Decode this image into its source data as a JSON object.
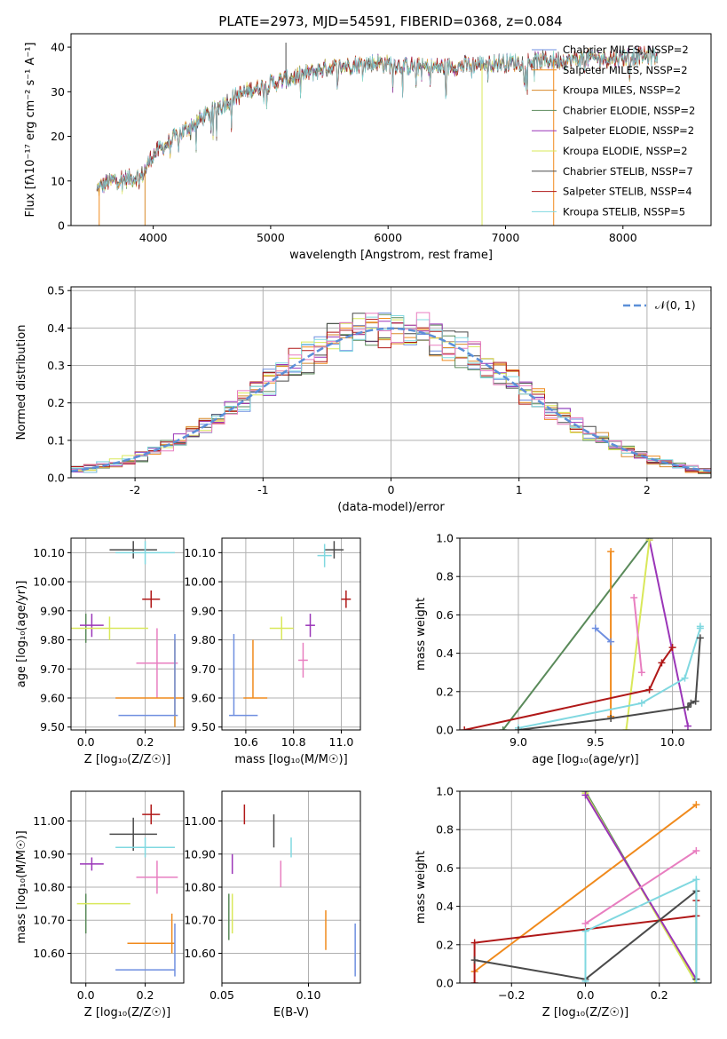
{
  "title": "PLATE=2973, MJD=54591, FIBERID=0368, z=0.084",
  "colors": {
    "chabrier_miles": "#6f8fe0",
    "salpeter_miles": "#f08a1c",
    "kroupa_miles": "#d88a2a",
    "chabrier_elodie": "#5a8a5a",
    "salpeter_elodie": "#9a35b8",
    "kroupa_elodie": "#d9e85a",
    "chabrier_stelib": "#4a4a4a",
    "salpeter_stelib": "#b01818",
    "kroupa_stelib": "#80d8e0",
    "pink": "#e87ec0",
    "gauss": "#5b8fd8",
    "green_line": "#5a8a5a",
    "grid": "#b0b0b0"
  },
  "chart_data": [
    {
      "id": "spectrum",
      "type": "line",
      "xlabel": "wavelength [Angstrom, rest frame]",
      "ylabel": "Flux [fλ10⁻¹⁷ erg cm⁻² s⁻¹ A⁻¹]",
      "xlim": [
        3300,
        8750
      ],
      "ylim": [
        0,
        43
      ],
      "xticks": [
        4000,
        5000,
        6000,
        7000,
        8000
      ],
      "yticks": [
        0,
        10,
        20,
        30,
        40
      ],
      "grid": false,
      "legend_position": "top-right",
      "legend": [
        {
          "label": "Chabrier MILES, NSSP=2",
          "key": "chabrier_miles"
        },
        {
          "label": "Salpeter MILES, NSSP=2",
          "key": "salpeter_miles"
        },
        {
          "label": "Kroupa MILES, NSSP=2",
          "key": "kroupa_miles"
        },
        {
          "label": "Chabrier ELODIE, NSSP=2",
          "key": "chabrier_elodie"
        },
        {
          "label": "Salpeter ELODIE, NSSP=2",
          "key": "salpeter_elodie"
        },
        {
          "label": "Kroupa ELODIE, NSSP=2",
          "key": "kroupa_elodie"
        },
        {
          "label": "Chabrier STELIB, NSSP=7",
          "key": "chabrier_stelib"
        },
        {
          "label": "Salpeter STELIB, NSSP=4",
          "key": "salpeter_stelib"
        },
        {
          "label": "Kroupa STELIB, NSSP=5",
          "key": "kroupa_stelib"
        }
      ],
      "continuum": {
        "x": [
          3520,
          3600,
          3700,
          3800,
          3900,
          4000,
          4100,
          4200,
          4300,
          4500,
          4700,
          4900,
          5100,
          5300,
          5500,
          5700,
          5900,
          6100,
          6300,
          6500,
          6700,
          6900,
          7100,
          7300,
          7500,
          7700,
          7900,
          8100,
          8300
        ],
        "y": [
          8,
          9.5,
          10.5,
          10.5,
          11,
          16,
          18,
          20,
          22,
          25.5,
          29,
          31,
          32.5,
          34,
          35.5,
          36,
          36.5,
          36,
          35.5,
          35.5,
          36,
          36.5,
          36.5,
          37,
          37,
          37.5,
          37.5,
          38,
          38
        ]
      },
      "spikes": [
        {
          "x": 5130,
          "y": 41
        },
        {
          "x": 6800,
          "y": 0
        },
        {
          "x": 7410,
          "y": 0
        },
        {
          "x": 3930,
          "y": 0
        },
        {
          "x": 3540,
          "y": 0
        }
      ]
    },
    {
      "id": "residuals",
      "type": "line",
      "xlabel": "(data-model)/error",
      "ylabel": "Normed distribution",
      "xlim": [
        -2.5,
        2.5
      ],
      "ylim": [
        0,
        0.51
      ],
      "xticks": [
        -2,
        -1,
        0,
        1,
        2
      ],
      "yticks": [
        0.0,
        0.1,
        0.2,
        0.3,
        0.4,
        0.5
      ],
      "grid": true,
      "legend_position": "top-right",
      "gauss_label": "𝒩(0, 1)",
      "bin_width": 0.1
    },
    {
      "id": "age_vs_Z",
      "type": "scatter",
      "xlabel": "Z [log₁₀(Z/Z☉)]",
      "ylabel": "age  [log₁₀(age/yr)]",
      "xlim": [
        -0.05,
        0.33
      ],
      "ylim": [
        9.49,
        10.15
      ],
      "xticks": [
        0.0,
        0.2
      ],
      "yticks": [
        9.5,
        9.6,
        9.7,
        9.8,
        9.9,
        10.0,
        10.1
      ],
      "grid": true,
      "points": [
        {
          "c": "chabrier_stelib",
          "x": 0.16,
          "y": 10.11,
          "xe": 0.08,
          "ye": 0.03
        },
        {
          "c": "kroupa_stelib",
          "x": 0.2,
          "y": 10.1,
          "xe": 0.1,
          "ye": 0.04
        },
        {
          "c": "salpeter_stelib",
          "x": 0.22,
          "y": 9.94,
          "xe": 0.03,
          "ye": 0.03
        },
        {
          "c": "chabrier_elodie",
          "x": 0.0,
          "y": 9.84,
          "xe": 0.0,
          "ye": 0.05
        },
        {
          "c": "salpeter_elodie",
          "x": 0.02,
          "y": 9.85,
          "xe": 0.04,
          "ye": 0.04
        },
        {
          "c": "kroupa_elodie",
          "x": 0.08,
          "y": 9.84,
          "xe": 0.13,
          "ye": 0.04
        },
        {
          "c": "pink",
          "x": 0.24,
          "y": 9.72,
          "xe": 0.07,
          "ye": 0.12
        },
        {
          "c": "kroupa_miles",
          "x": 0.3,
          "y": 9.65,
          "xe": 0.0,
          "ye": 0.15
        },
        {
          "c": "salpeter_miles",
          "x": 0.23,
          "y": 9.6,
          "xe": 0.13,
          "ye": 0.0
        },
        {
          "c": "chabrier_miles",
          "x": 0.3,
          "y": 9.68,
          "xe": 0.0,
          "ye": 0.14
        },
        {
          "c": "chabrier_miles",
          "x": 0.21,
          "y": 9.54,
          "xe": 0.1,
          "ye": 0.0
        }
      ]
    },
    {
      "id": "age_vs_mass",
      "type": "scatter",
      "xlabel": "mass [log₁₀(M/M☉)]",
      "ylabel": "",
      "xlim": [
        10.5,
        11.08
      ],
      "ylim": [
        9.49,
        10.15
      ],
      "xticks": [
        10.6,
        10.8,
        11.0
      ],
      "yticks": [
        9.5,
        9.6,
        9.7,
        9.8,
        9.9,
        10.0,
        10.1
      ],
      "grid": true,
      "points": [
        {
          "c": "chabrier_stelib",
          "x": 10.97,
          "y": 10.11,
          "xe": 0.04,
          "ye": 0.03
        },
        {
          "c": "kroupa_stelib",
          "x": 10.93,
          "y": 10.09,
          "xe": 0.03,
          "ye": 0.04
        },
        {
          "c": "salpeter_stelib",
          "x": 11.02,
          "y": 9.94,
          "xe": 0.02,
          "ye": 0.03
        },
        {
          "c": "kroupa_elodie",
          "x": 10.75,
          "y": 9.84,
          "xe": 0.05,
          "ye": 0.04
        },
        {
          "c": "salpeter_elodie",
          "x": 10.87,
          "y": 9.85,
          "xe": 0.02,
          "ye": 0.04
        },
        {
          "c": "pink",
          "x": 10.84,
          "y": 9.73,
          "xe": 0.02,
          "ye": 0.06
        },
        {
          "c": "salpeter_miles",
          "x": 10.64,
          "y": 9.6,
          "xe": 0.05,
          "ye": 0.0
        },
        {
          "c": "salpeter_miles",
          "x": 10.63,
          "y": 9.7,
          "xe": 0.0,
          "ye": 0.1
        },
        {
          "c": "chabrier_miles",
          "x": 10.55,
          "y": 9.68,
          "xe": 0.0,
          "ye": 0.14
        },
        {
          "c": "chabrier_miles",
          "x": 10.59,
          "y": 9.54,
          "xe": 0.06,
          "ye": 0.0
        }
      ]
    },
    {
      "id": "weight_vs_age",
      "type": "line",
      "xlabel": "age  [log₁₀(age/yr)]",
      "ylabel": "mass weight",
      "xlim": [
        8.62,
        10.25
      ],
      "ylim": [
        0,
        1
      ],
      "xticks": [
        9.0,
        9.5,
        10.0
      ],
      "yticks": [
        0.0,
        0.2,
        0.4,
        0.6,
        0.8,
        1.0
      ],
      "grid": true,
      "series": [
        {
          "c": "green_line",
          "x": [
            8.9,
            9.85
          ],
          "y": [
            0.0,
            1.0
          ]
        },
        {
          "c": "salpeter_elodie",
          "x": [
            9.85,
            10.1
          ],
          "y": [
            0.99,
            0.02
          ]
        },
        {
          "c": "kroupa_elodie",
          "x": [
            9.7,
            9.85
          ],
          "y": [
            0.0,
            0.99
          ]
        },
        {
          "c": "salpeter_miles",
          "x": [
            9.6,
            9.6
          ],
          "y": [
            0.07,
            0.93
          ]
        },
        {
          "c": "chabrier_miles",
          "x": [
            9.5,
            9.6
          ],
          "y": [
            0.53,
            0.46
          ]
        },
        {
          "c": "pink",
          "x": [
            9.75,
            9.8
          ],
          "y": [
            0.69,
            0.3
          ]
        },
        {
          "c": "salpeter_stelib",
          "x": [
            8.65,
            9.85,
            9.93,
            10.0
          ],
          "y": [
            0.0,
            0.21,
            0.35,
            0.43
          ]
        },
        {
          "c": "kroupa_stelib",
          "x": [
            9.0,
            9.8,
            10.08,
            10.18,
            10.18
          ],
          "y": [
            0.01,
            0.14,
            0.27,
            0.53,
            0.54
          ]
        },
        {
          "c": "chabrier_stelib",
          "x": [
            9.0,
            9.6,
            10.1,
            10.12,
            10.15,
            10.18
          ],
          "y": [
            0.0,
            0.06,
            0.12,
            0.14,
            0.15,
            0.48
          ]
        }
      ]
    },
    {
      "id": "mass_vs_Z",
      "type": "scatter",
      "xlabel": "Z [log₁₀(Z/Z☉)]",
      "ylabel": "mass [log₁₀(M/M☉)]",
      "xlim": [
        -0.05,
        0.33
      ],
      "ylim": [
        10.51,
        11.09
      ],
      "xticks": [
        0.0,
        0.2
      ],
      "yticks": [
        10.6,
        10.7,
        10.8,
        10.9,
        11.0
      ],
      "grid": true,
      "points": [
        {
          "c": "salpeter_stelib",
          "x": 0.22,
          "y": 11.02,
          "xe": 0.03,
          "ye": 0.03
        },
        {
          "c": "chabrier_stelib",
          "x": 0.16,
          "y": 10.96,
          "xe": 0.08,
          "ye": 0.05
        },
        {
          "c": "kroupa_stelib",
          "x": 0.2,
          "y": 10.92,
          "xe": 0.1,
          "ye": 0.03
        },
        {
          "c": "salpeter_elodie",
          "x": 0.02,
          "y": 10.87,
          "xe": 0.04,
          "ye": 0.02
        },
        {
          "c": "pink",
          "x": 0.24,
          "y": 10.83,
          "xe": 0.07,
          "ye": 0.05
        },
        {
          "c": "chabrier_elodie",
          "x": 0.0,
          "y": 10.72,
          "xe": 0.0,
          "ye": 0.06
        },
        {
          "c": "kroupa_elodie",
          "x": 0.06,
          "y": 10.75,
          "xe": 0.09,
          "ye": 0.0
        },
        {
          "c": "salpeter_miles",
          "x": 0.29,
          "y": 10.66,
          "xe": 0.0,
          "ye": 0.06
        },
        {
          "c": "salpeter_miles",
          "x": 0.22,
          "y": 10.63,
          "xe": 0.08,
          "ye": 0.0
        },
        {
          "c": "chabrier_miles",
          "x": 0.3,
          "y": 10.61,
          "xe": 0.0,
          "ye": 0.08
        },
        {
          "c": "chabrier_miles",
          "x": 0.2,
          "y": 10.55,
          "xe": 0.1,
          "ye": 0.0
        }
      ]
    },
    {
      "id": "mass_vs_ebv",
      "type": "scatter",
      "xlabel": "E(B-V)",
      "ylabel": "",
      "xlim": [
        0.05,
        0.13
      ],
      "ylim": [
        10.51,
        11.09
      ],
      "xticks": [
        0.05,
        0.1
      ],
      "yticks": [
        10.6,
        10.7,
        10.8,
        10.9,
        11.0
      ],
      "grid": true,
      "points": [
        {
          "c": "salpeter_stelib",
          "x": 0.063,
          "y": 11.02,
          "xe": 0.0,
          "ye": 0.03
        },
        {
          "c": "chabrier_stelib",
          "x": 0.08,
          "y": 10.97,
          "xe": 0.0,
          "ye": 0.05
        },
        {
          "c": "kroupa_stelib",
          "x": 0.09,
          "y": 10.92,
          "xe": 0.0,
          "ye": 0.03
        },
        {
          "c": "salpeter_elodie",
          "x": 0.056,
          "y": 10.87,
          "xe": 0.0,
          "ye": 0.03
        },
        {
          "c": "pink",
          "x": 0.084,
          "y": 10.84,
          "xe": 0.0,
          "ye": 0.04
        },
        {
          "c": "chabrier_elodie",
          "x": 0.054,
          "y": 10.71,
          "xe": 0.0,
          "ye": 0.07
        },
        {
          "c": "kroupa_elodie",
          "x": 0.056,
          "y": 10.72,
          "xe": 0.0,
          "ye": 0.06
        },
        {
          "c": "salpeter_miles",
          "x": 0.11,
          "y": 10.67,
          "xe": 0.0,
          "ye": 0.06
        },
        {
          "c": "chabrier_miles",
          "x": 0.127,
          "y": 10.61,
          "xe": 0.0,
          "ye": 0.08
        }
      ]
    },
    {
      "id": "weight_vs_Z",
      "type": "line",
      "xlabel": "Z [log₁₀(Z/Z☉)]",
      "ylabel": "mass weight",
      "xlim": [
        -0.34,
        0.34
      ],
      "ylim": [
        0,
        1
      ],
      "xticks": [
        -0.2,
        0.0,
        0.2
      ],
      "yticks": [
        0.0,
        0.2,
        0.4,
        0.6,
        0.8,
        1.0
      ],
      "grid": true,
      "series": [
        {
          "c": "salpeter_miles",
          "x": [
            -0.3,
            0.3
          ],
          "y": [
            0.06,
            0.93
          ]
        },
        {
          "c": "chabrier_elodie",
          "x": [
            0.0,
            0.3
          ],
          "y": [
            1.0,
            0.0
          ]
        },
        {
          "c": "kroupa_elodie",
          "x": [
            0.0,
            0.3
          ],
          "y": [
            0.99,
            0.0
          ]
        },
        {
          "c": "salpeter_elodie",
          "x": [
            0.0,
            0.3
          ],
          "y": [
            0.98,
            0.02
          ]
        },
        {
          "c": "pink",
          "x": [
            0.0,
            0.3
          ],
          "y": [
            0.31,
            0.69
          ]
        },
        {
          "c": "salpeter_stelib",
          "x": [
            -0.3,
            -0.3,
            0.3,
            0.3
          ],
          "y": [
            0.0,
            0.21,
            0.35,
            0.43
          ]
        },
        {
          "c": "chabrier_stelib",
          "x": [
            -0.3,
            0.0,
            0.3,
            0.3
          ],
          "y": [
            0.12,
            0.02,
            0.48,
            0.02
          ]
        },
        {
          "c": "kroupa_stelib",
          "x": [
            0.0,
            0.0,
            0.3,
            0.3
          ],
          "y": [
            0.01,
            0.27,
            0.54,
            0.0
          ]
        }
      ]
    }
  ]
}
